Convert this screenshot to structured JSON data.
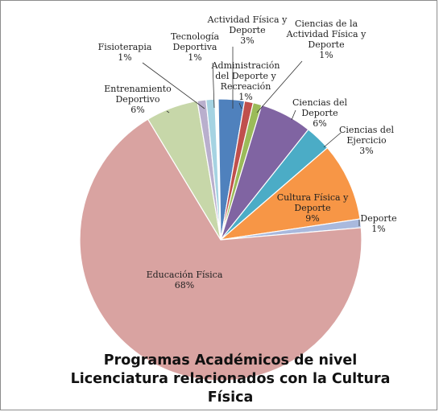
{
  "chart_data": {
    "type": "pie",
    "title": "Programas Académicos de nivel Licenciatura relacionados con la Cultura Física",
    "title_lines": [
      "Programas Académicos de nivel",
      "Licenciatura relacionados con la Cultura",
      "Física"
    ],
    "slices": [
      {
        "name": "Actividad Física y Deporte",
        "lines": [
          "Actividad Física y",
          "Deporte"
        ],
        "pct_label": "3%",
        "value": 3,
        "color": "#4f81bd"
      },
      {
        "name": "Administración del Deporte y Recreación",
        "lines": [
          "Administración",
          "del Deporte y",
          "Recreación"
        ],
        "pct_label": "1%",
        "value": 1,
        "color": "#c0504d"
      },
      {
        "name": "Ciencias de la Actividad Física y Deporte",
        "lines": [
          "Ciencias de la",
          "Actividad Física y",
          "Deporte"
        ],
        "pct_label": "1%",
        "value": 1,
        "color": "#9bbb59"
      },
      {
        "name": "Ciencias del Deporte",
        "lines": [
          "Ciencias del",
          "Deporte"
        ],
        "pct_label": "6%",
        "value": 6,
        "color": "#8064a2"
      },
      {
        "name": "Ciencias del Ejercicio",
        "lines": [
          "Ciencias del",
          "Ejercicio"
        ],
        "pct_label": "3%",
        "value": 3,
        "color": "#4bacc6"
      },
      {
        "name": "Cultura Física y Deporte",
        "lines": [
          "Cultura Física y",
          "Deporte"
        ],
        "pct_label": "9%",
        "value": 9,
        "color": "#f79646"
      },
      {
        "name": "Deporte",
        "lines": [
          "Deporte"
        ],
        "pct_label": "1%",
        "value": 1,
        "color": "#a9b9dd"
      },
      {
        "name": "Educación Física",
        "lines": [
          "Educación Física"
        ],
        "pct_label": "68%",
        "value": 68,
        "color": "#d9a3a1"
      },
      {
        "name": "Entrenamiento Deportivo",
        "lines": [
          "Entrenamiento",
          "Deportivo"
        ],
        "pct_label": "6%",
        "value": 6,
        "color": "#c7d7a9"
      },
      {
        "name": "Fisioterapia",
        "lines": [
          "Fisioterapia"
        ],
        "pct_label": "1%",
        "value": 1,
        "color": "#b9afcd"
      },
      {
        "name": "Tecnología Deportiva",
        "lines": [
          "Tecnología",
          "Deportiva"
        ],
        "pct_label": "1%",
        "value": 1,
        "color": "#a5d3e2"
      }
    ]
  }
}
